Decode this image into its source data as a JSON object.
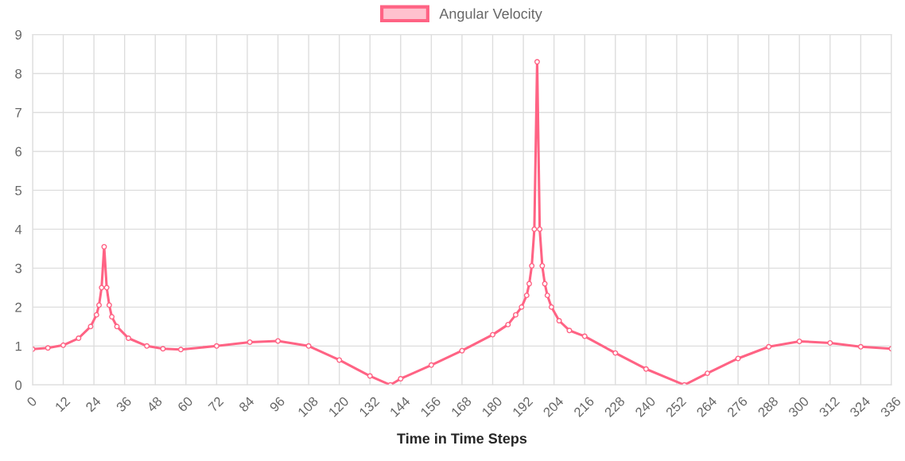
{
  "chart_data": {
    "type": "line",
    "xlabel": "Time in Time Steps",
    "xlim": [
      0,
      336
    ],
    "xticks": [
      0,
      12,
      24,
      36,
      48,
      60,
      72,
      84,
      96,
      108,
      120,
      132,
      144,
      156,
      168,
      180,
      192,
      204,
      216,
      228,
      240,
      252,
      264,
      276,
      288,
      300,
      312,
      324,
      336
    ],
    "ylim": [
      0,
      9
    ],
    "yticks": [
      0,
      1,
      2,
      3,
      4,
      5,
      6,
      7,
      8,
      9
    ],
    "grid": true,
    "legend": "top",
    "marker": "circle",
    "line_style": "solid",
    "series": [
      {
        "name": "Angular Velocity",
        "color": "#ff6384",
        "x": [
          0,
          6,
          12,
          18,
          22.7,
          25,
          26,
          27,
          28,
          29,
          30,
          31,
          33,
          37.5,
          44.7,
          51,
          58,
          72,
          85,
          96,
          108,
          120,
          132,
          140,
          144,
          156,
          168,
          180,
          186,
          189,
          191.3,
          193.3,
          194.3,
          195.3,
          196.3,
          197.4,
          198.4,
          199.4,
          200.4,
          201.4,
          203,
          206,
          210,
          216,
          228,
          240,
          255,
          264,
          276,
          288,
          300,
          312,
          324,
          336
        ],
        "values": [
          0.92,
          0.95,
          1.02,
          1.2,
          1.5,
          1.8,
          2.05,
          2.5,
          3.55,
          2.5,
          2.05,
          1.75,
          1.5,
          1.2,
          1.0,
          0.93,
          0.91,
          1.0,
          1.1,
          1.13,
          1.0,
          0.64,
          0.23,
          0.0,
          0.16,
          0.51,
          0.88,
          1.29,
          1.55,
          1.8,
          2.0,
          2.3,
          2.6,
          3.06,
          4.0,
          8.3,
          4.0,
          3.06,
          2.6,
          2.3,
          2.0,
          1.65,
          1.4,
          1.25,
          0.82,
          0.41,
          0.0,
          0.3,
          0.68,
          0.98,
          1.12,
          1.08,
          0.98,
          0.93
        ]
      }
    ]
  }
}
